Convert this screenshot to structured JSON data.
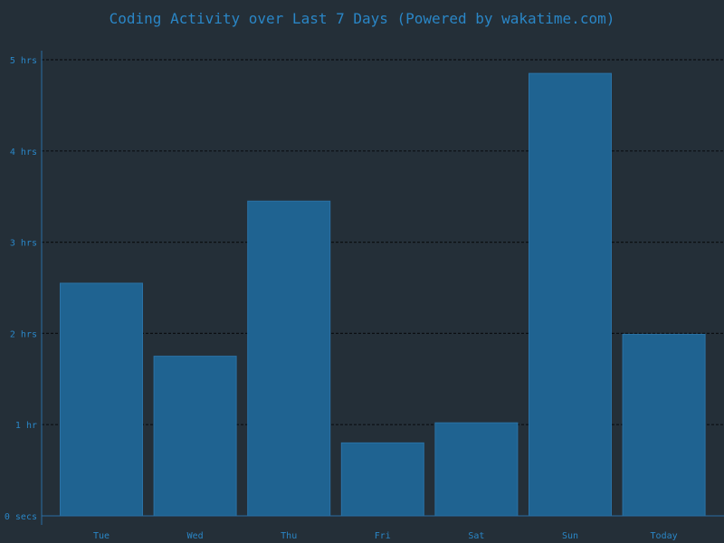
{
  "colors": {
    "background": "#242f38",
    "bar_fill": "#1f6391",
    "bar_stroke": "#2a72a6",
    "text": "#2a86c6",
    "axis": "#2a6ea3",
    "grid": "#0b0f12"
  },
  "chart_data": {
    "type": "bar",
    "title": "Coding Activity over Last 7 Days (Powered by wakatime.com)",
    "xlabel": "",
    "ylabel": "",
    "categories": [
      "Tue",
      "Wed",
      "Thu",
      "Fri",
      "Sat",
      "Sun",
      "Today"
    ],
    "values": [
      2.55,
      1.75,
      3.45,
      0.8,
      1.02,
      4.85,
      1.99
    ],
    "value_unit": "hours",
    "ylim": [
      0,
      5
    ],
    "y_ticks": [
      {
        "value": 0,
        "label": "0 secs"
      },
      {
        "value": 1,
        "label": "1 hr"
      },
      {
        "value": 2,
        "label": "2 hrs"
      },
      {
        "value": 3,
        "label": "3 hrs"
      },
      {
        "value": 4,
        "label": "4 hrs"
      },
      {
        "value": 5,
        "label": "5 hrs"
      }
    ],
    "grid": true,
    "grid_style": "dashed",
    "legend": "none"
  }
}
